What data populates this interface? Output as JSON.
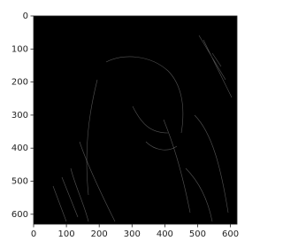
{
  "chart_data": {
    "type": "image",
    "xlim": [
      0,
      620
    ],
    "ylim": [
      0,
      630
    ],
    "y_inverted": true,
    "xticks": [
      0,
      100,
      200,
      300,
      400,
      500,
      600
    ],
    "yticks": [
      0,
      100,
      200,
      300,
      400,
      500,
      600
    ],
    "background": "#000000"
  }
}
